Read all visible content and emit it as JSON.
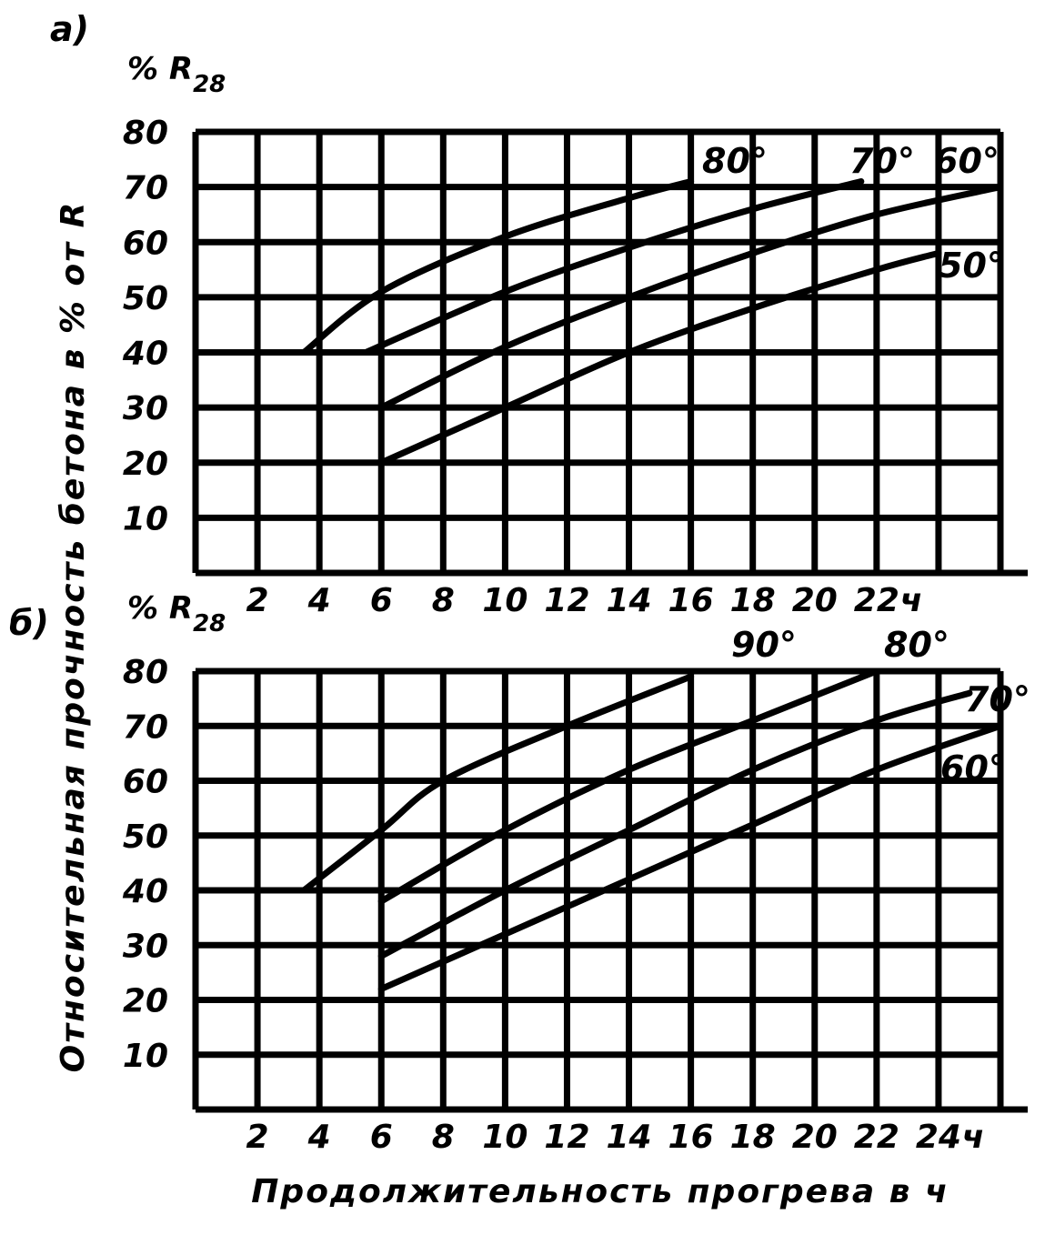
{
  "chart_data": [
    {
      "type": "line",
      "panel_label": "а)",
      "y_unit": "% R",
      "y_unit_sub": "28",
      "x_unit": "ч",
      "xlim": [
        0,
        26
      ],
      "ylim": [
        0,
        80
      ],
      "x_ticks": [
        2,
        4,
        6,
        8,
        10,
        12,
        14,
        16,
        18,
        20,
        22
      ],
      "y_ticks": [
        10,
        20,
        30,
        40,
        50,
        60,
        70,
        80
      ],
      "grid": true,
      "series": [
        {
          "name": "80°",
          "points": [
            [
              3.5,
              40
            ],
            [
              6,
              51
            ],
            [
              10,
              61
            ],
            [
              14,
              68
            ],
            [
              16,
              71
            ]
          ]
        },
        {
          "name": "70°",
          "points": [
            [
              5.5,
              40
            ],
            [
              10,
              51
            ],
            [
              14,
              59
            ],
            [
              18,
              66
            ],
            [
              21.5,
              71
            ]
          ]
        },
        {
          "name": "60°",
          "points": [
            [
              6,
              30
            ],
            [
              10,
              41
            ],
            [
              14,
              50
            ],
            [
              18,
              58
            ],
            [
              22,
              65
            ],
            [
              26,
              70
            ]
          ]
        },
        {
          "name": "50°",
          "points": [
            [
              6,
              20
            ],
            [
              10,
              30
            ],
            [
              14,
              40
            ],
            [
              18,
              48
            ],
            [
              22,
              55
            ],
            [
              24,
              58
            ]
          ]
        }
      ]
    },
    {
      "type": "line",
      "panel_label": "б)",
      "y_unit": "% R",
      "y_unit_sub": "28",
      "x_unit": "ч",
      "xlim": [
        0,
        26
      ],
      "ylim": [
        0,
        80
      ],
      "x_ticks": [
        2,
        4,
        6,
        8,
        10,
        12,
        14,
        16,
        18,
        20,
        22,
        24
      ],
      "y_ticks": [
        10,
        20,
        30,
        40,
        50,
        60,
        70,
        80
      ],
      "grid": true,
      "series": [
        {
          "name": "90°",
          "points": [
            [
              3.5,
              40
            ],
            [
              6,
              51
            ],
            [
              8,
              60
            ],
            [
              12,
              70
            ],
            [
              16,
              79
            ]
          ]
        },
        {
          "name": "80°",
          "points": [
            [
              6,
              38
            ],
            [
              10,
              51
            ],
            [
              14,
              62
            ],
            [
              18,
              71
            ],
            [
              22,
              80
            ]
          ]
        },
        {
          "name": "70°",
          "points": [
            [
              6,
              28
            ],
            [
              10,
              40
            ],
            [
              14,
              51
            ],
            [
              18,
              62
            ],
            [
              22,
              71
            ],
            [
              25,
              76
            ]
          ]
        },
        {
          "name": "60°",
          "points": [
            [
              6,
              22
            ],
            [
              10,
              32
            ],
            [
              14,
              42
            ],
            [
              18,
              52
            ],
            [
              22,
              62
            ],
            [
              26,
              70
            ]
          ]
        }
      ]
    }
  ],
  "y_axis_title": "Относительная прочность бетона в % от R",
  "x_axis_title": "Продолжительность прогрева в ч"
}
